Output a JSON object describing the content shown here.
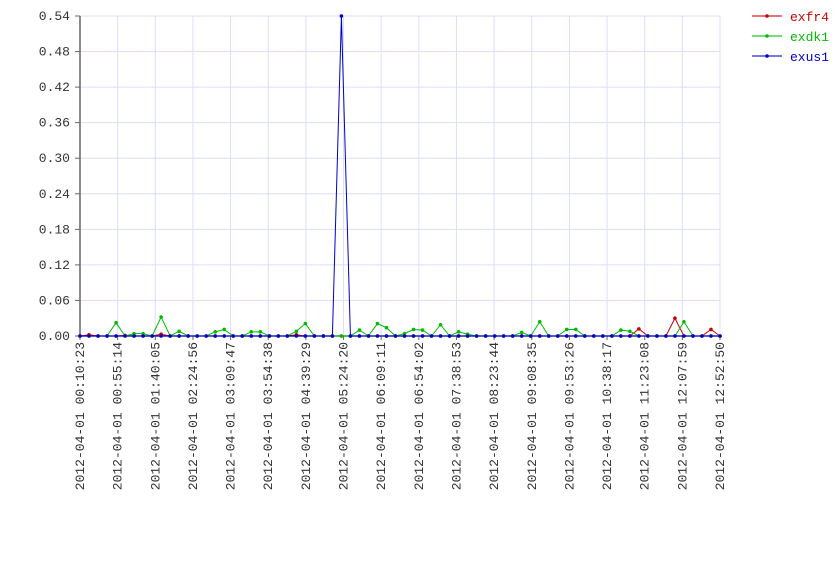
{
  "chart_data": {
    "type": "line",
    "title": "",
    "xlabel": "",
    "ylabel": "",
    "ylim": [
      0,
      0.54
    ],
    "yticks": [
      "0.00",
      "0.06",
      "0.12",
      "0.18",
      "0.24",
      "0.30",
      "0.36",
      "0.42",
      "0.48",
      "0.54"
    ],
    "xticks": [
      "2012-04-01 00:10:23",
      "2012-04-01 00:55:14",
      "2012-04-01 01:40:05",
      "2012-04-01 02:24:56",
      "2012-04-01 03:09:47",
      "2012-04-01 03:54:38",
      "2012-04-01 04:39:29",
      "2012-04-01 05:24:20",
      "2012-04-01 06:09:11",
      "2012-04-01 06:54:02",
      "2012-04-01 07:38:53",
      "2012-04-01 08:23:44",
      "2012-04-01 09:08:35",
      "2012-04-01 09:53:26",
      "2012-04-01 10:38:17",
      "2012-04-01 11:23:08",
      "2012-04-01 12:07:59",
      "2012-04-01 12:52:50"
    ],
    "xrange": [
      "2012-04-01 00:10:23",
      "2012-04-01 12:52:50"
    ],
    "grid": true,
    "legend_position": "top-right",
    "series": [
      {
        "name": "exfr4",
        "color": "#cc0000",
        "values": [
          0,
          0.002,
          0,
          0,
          0,
          0.001,
          0,
          0,
          0,
          0.003,
          0,
          0,
          0,
          0,
          0,
          0,
          0,
          0,
          0,
          0,
          0,
          0,
          0,
          0,
          0.002,
          0,
          0,
          0,
          0,
          0,
          0,
          0,
          0,
          0,
          0,
          0,
          0,
          0,
          0,
          0,
          0,
          0,
          0,
          0,
          0,
          0,
          0,
          0,
          0,
          0,
          0,
          0,
          0,
          0,
          0,
          0,
          0,
          0,
          0,
          0,
          0,
          0,
          0.012,
          0,
          0,
          0,
          0.03,
          0,
          0,
          0,
          0.011,
          0
        ]
      },
      {
        "name": "exdk1",
        "color": "#00bb00",
        "values": [
          0,
          0,
          0,
          0,
          0.0225,
          0,
          0.004,
          0.004,
          0,
          0.032,
          0,
          0.008,
          0,
          0,
          0,
          0.007,
          0.011,
          0,
          0,
          0.007,
          0.007,
          0,
          0,
          0,
          0.008,
          0.021,
          0,
          0,
          0,
          0,
          0,
          0.01,
          0,
          0.021,
          0.014,
          0,
          0.004,
          0.011,
          0.01,
          0,
          0.019,
          0,
          0.007,
          0.003,
          0,
          0,
          0,
          0,
          0,
          0.006,
          0,
          0.024,
          0,
          0,
          0.011,
          0.011,
          0,
          0,
          0,
          0,
          0.01,
          0.008,
          0,
          0,
          0,
          0,
          0,
          0.024,
          0,
          0,
          0,
          0
        ]
      },
      {
        "name": "exus1",
        "color": "#0000cc",
        "values": [
          0,
          0,
          0,
          0,
          0,
          0,
          0,
          0,
          0,
          0,
          0,
          0,
          0,
          0,
          0,
          0,
          0,
          0,
          0,
          0,
          0,
          0,
          0,
          0,
          0,
          0,
          0,
          0,
          0,
          0.54,
          0,
          0,
          0,
          0,
          0,
          0,
          0,
          0,
          0,
          0,
          0,
          0,
          0,
          0,
          0,
          0,
          0,
          0,
          0,
          0,
          0,
          0,
          0,
          0,
          0,
          0,
          0,
          0,
          0,
          0,
          0,
          0,
          0,
          0,
          0,
          0,
          0,
          0,
          0,
          0,
          0,
          0
        ]
      }
    ]
  }
}
